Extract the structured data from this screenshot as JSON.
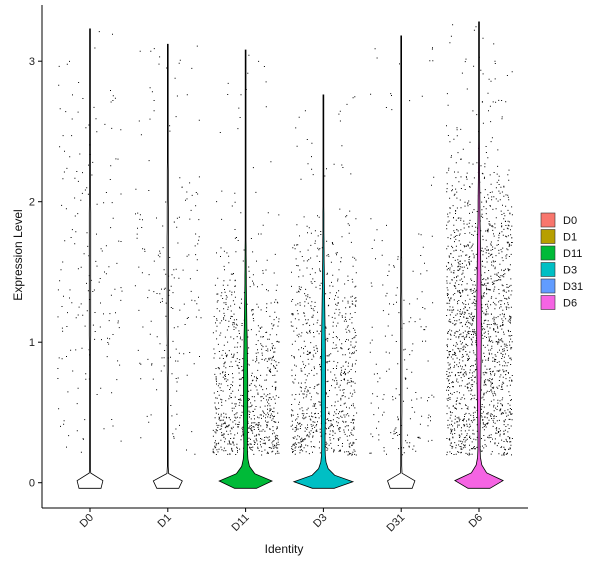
{
  "chart_data": {
    "type": "violin",
    "xlabel": "Identity",
    "ylabel": "Expression Level",
    "categories": [
      "D0",
      "D1",
      "D11",
      "D3",
      "D31",
      "D6"
    ],
    "colors": [
      "#F8766D",
      "#B79F00",
      "#00BA38",
      "#00BFC4",
      "#619CFF",
      "#F564E3"
    ],
    "ylim": [
      -0.18,
      3.4
    ],
    "yticks": [
      0,
      1,
      2,
      3
    ],
    "legend": {
      "position": "right",
      "entries": [
        "D0",
        "D1",
        "D11",
        "D3",
        "D31",
        "D6"
      ]
    },
    "grid": false,
    "series": [
      {
        "name": "D0",
        "max": 3.23,
        "zero_fraction": 0.97,
        "nonzero_center": 1.5,
        "nonzero_spread": 0.7
      },
      {
        "name": "D1",
        "max": 3.12,
        "zero_fraction": 0.97,
        "nonzero_center": 1.4,
        "nonzero_spread": 0.6
      },
      {
        "name": "D11",
        "max": 3.08,
        "zero_fraction": 0.85,
        "nonzero_center": 0.6,
        "nonzero_spread": 0.55
      },
      {
        "name": "D3",
        "max": 2.76,
        "zero_fraction": 0.85,
        "nonzero_center": 0.7,
        "nonzero_spread": 0.6
      },
      {
        "name": "D31",
        "max": 3.18,
        "zero_fraction": 0.97,
        "nonzero_center": 0.8,
        "nonzero_spread": 0.55
      },
      {
        "name": "D6",
        "max": 3.28,
        "zero_fraction": 0.7,
        "nonzero_center": 1.1,
        "nonzero_spread": 0.65
      }
    ]
  }
}
